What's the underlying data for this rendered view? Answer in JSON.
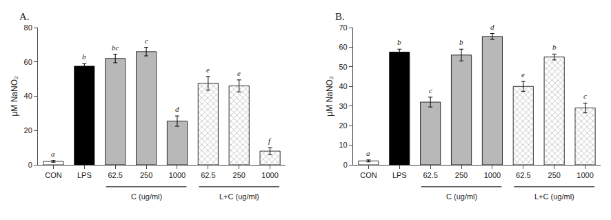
{
  "chart_data": [
    {
      "type": "bar",
      "title": "A.",
      "categories": [
        "CON",
        "LPS",
        "62.5",
        "250",
        "1000",
        "62.5",
        "250",
        "1000"
      ],
      "values": [
        2.0,
        57.5,
        62.0,
        66.0,
        25.5,
        47.5,
        46.0,
        8.0
      ],
      "errors": [
        0.5,
        1.5,
        2.5,
        2.5,
        3.0,
        4.0,
        3.5,
        2.0
      ],
      "annotations": [
        "a",
        "b",
        "bc",
        "c",
        "d",
        "e",
        "e",
        "f"
      ],
      "groups": [
        {
          "label": "C (ug/ml)",
          "start": 2,
          "end": 4
        },
        {
          "label": "L+C (ug/ml)",
          "start": 5,
          "end": 7
        }
      ],
      "ylabel": "μM NaNO₂",
      "colors": [
        "white",
        "black",
        "#b8b8b8",
        "#b8b8b8",
        "#b8b8b8",
        "#b8b8b8",
        "#b8b8b8",
        "#b8b8b8"
      ],
      "ylim": [
        0,
        80
      ],
      "yticks": [
        0,
        20,
        40,
        60,
        80
      ],
      "grid": false
    },
    {
      "type": "bar",
      "title": "B.",
      "categories": [
        "CON",
        "LPS",
        "62.5",
        "250",
        "1000",
        "62.5",
        "250",
        "1000"
      ],
      "values": [
        2.0,
        57.5,
        32.0,
        56.0,
        65.5,
        40.0,
        55.0,
        29.0
      ],
      "errors": [
        0.5,
        1.5,
        2.5,
        3.0,
        1.5,
        2.5,
        1.5,
        2.5
      ],
      "annotations": [
        "a",
        "b",
        "c",
        "b",
        "d",
        "e",
        "b",
        "c"
      ],
      "groups": [
        {
          "label": "C (ug/ml)",
          "start": 2,
          "end": 4
        },
        {
          "label": "L+C (ug/ml)",
          "start": 5,
          "end": 7
        }
      ],
      "ylabel": "μM NaNO₂",
      "colors": [
        "white",
        "black",
        "#b8b8b8",
        "#b8b8b8",
        "#b8b8b8",
        "#b8b8b8",
        "#b8b8b8",
        "#b8b8b8"
      ],
      "ylim": [
        0,
        70
      ],
      "yticks": [
        0,
        10,
        20,
        30,
        40,
        50,
        60,
        70
      ],
      "grid": false
    }
  ]
}
